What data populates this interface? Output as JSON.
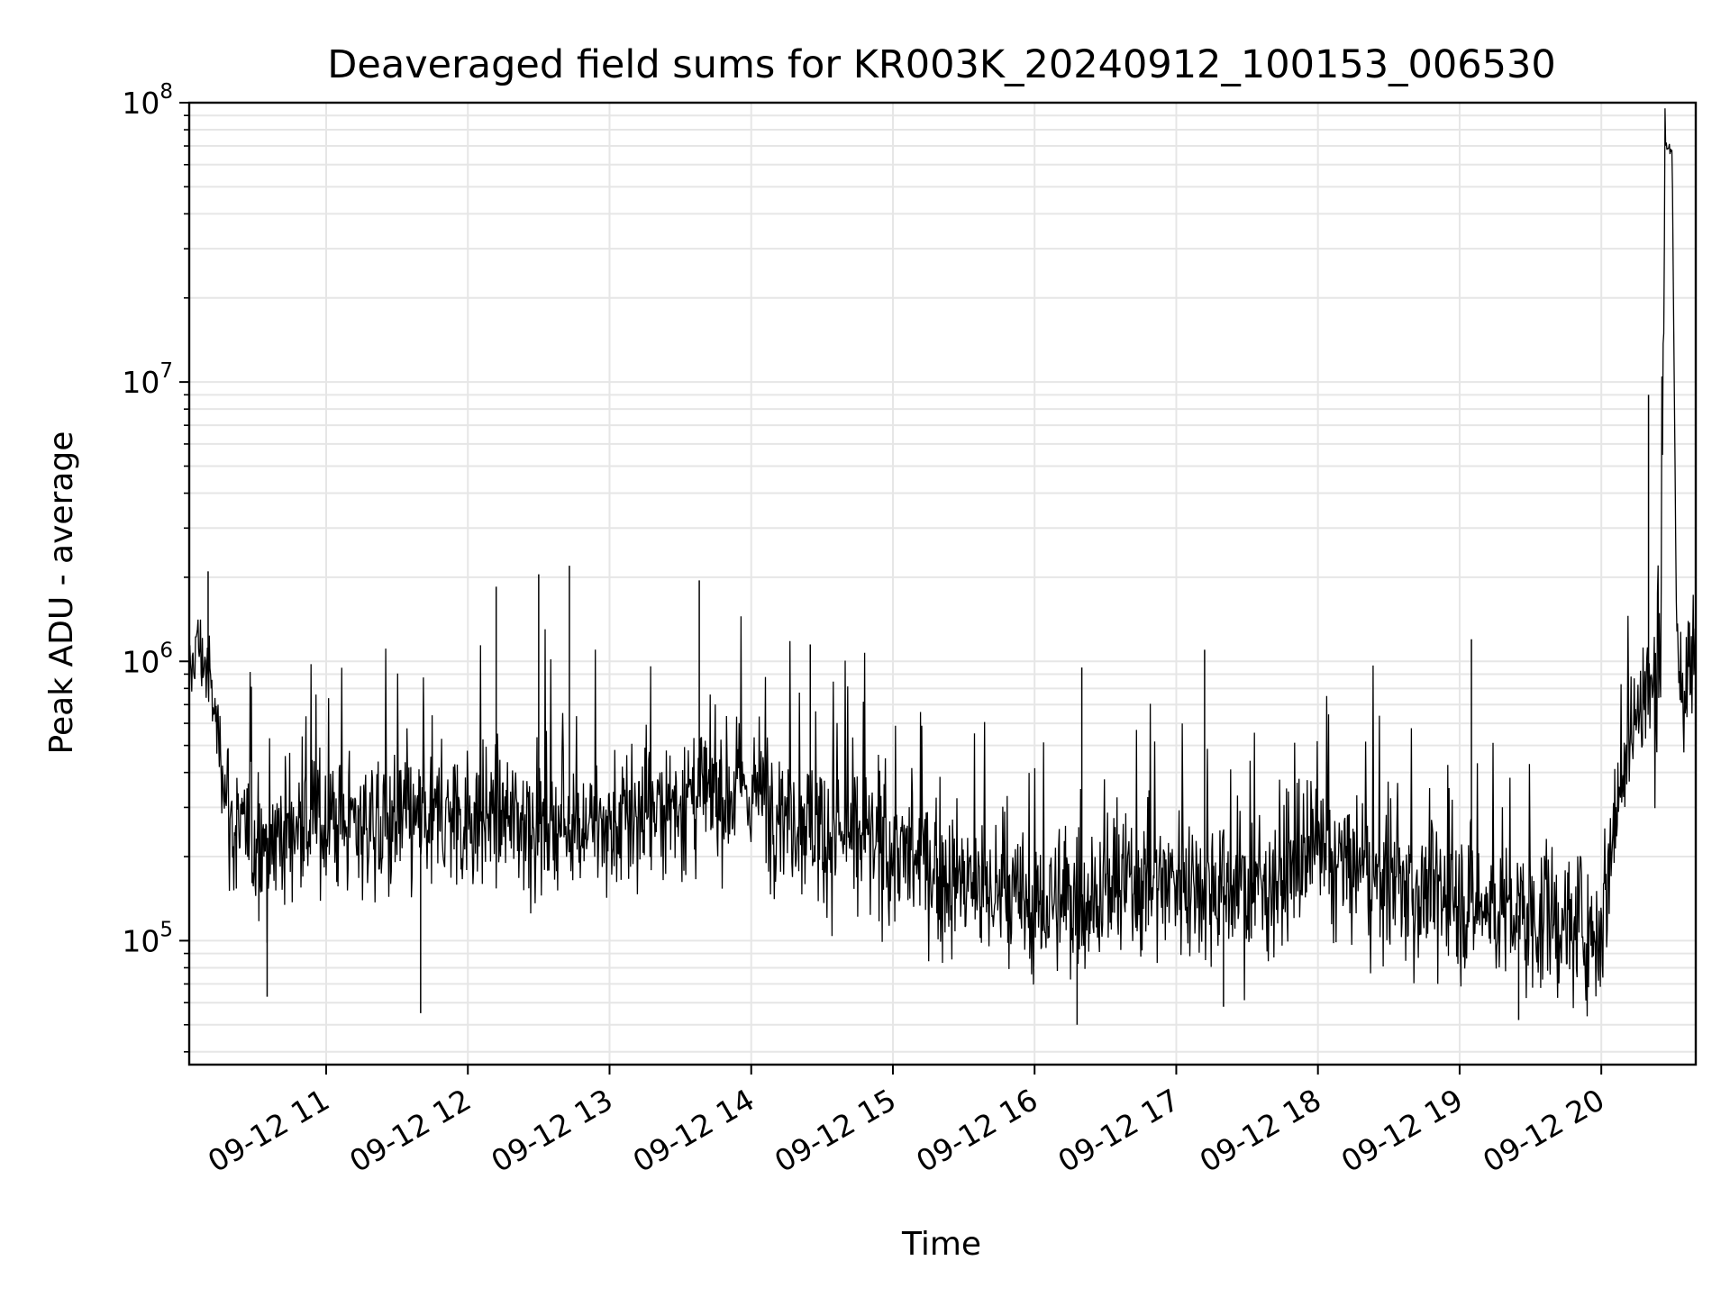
{
  "chart_data": {
    "type": "line",
    "title": "Deaveraged field sums for KR003K_20240912_100153_006530",
    "xlabel": "Time",
    "ylabel": "Peak ADU - average",
    "x_range": [
      "2024-09-12 10:02",
      "2024-09-12 20:40"
    ],
    "x_ticks": [
      {
        "time": "2024-09-12 11:00",
        "label": "09-12 11"
      },
      {
        "time": "2024-09-12 12:00",
        "label": "09-12 12"
      },
      {
        "time": "2024-09-12 13:00",
        "label": "09-12 13"
      },
      {
        "time": "2024-09-12 14:00",
        "label": "09-12 14"
      },
      {
        "time": "2024-09-12 15:00",
        "label": "09-12 15"
      },
      {
        "time": "2024-09-12 16:00",
        "label": "09-12 16"
      },
      {
        "time": "2024-09-12 17:00",
        "label": "09-12 17"
      },
      {
        "time": "2024-09-12 18:00",
        "label": "09-12 18"
      },
      {
        "time": "2024-09-12 19:00",
        "label": "09-12 19"
      },
      {
        "time": "2024-09-12 20:00",
        "label": "09-12 20"
      }
    ],
    "y_scale": "log",
    "ylim": [
      36000,
      100000000
    ],
    "y_ticks": [
      {
        "value": 100000,
        "base": "10",
        "exp": "5"
      },
      {
        "value": 1000000,
        "base": "10",
        "exp": "6"
      },
      {
        "value": 10000000,
        "base": "10",
        "exp": "7"
      },
      {
        "value": 100000000,
        "base": "10",
        "exp": "8"
      }
    ],
    "grid": true,
    "line_color": "#000000",
    "grid_color": "#e6e6e6",
    "series": [
      {
        "x": [
          "2024-09-12 10:02",
          "2024-09-12 10:05",
          "2024-09-12 10:10",
          "2024-09-12 10:15",
          "2024-09-12 10:20",
          "2024-09-12 10:30",
          "2024-09-12 10:45",
          "2024-09-12 11:00",
          "2024-09-12 11:30",
          "2024-09-12 12:00",
          "2024-09-12 12:30",
          "2024-09-12 13:00",
          "2024-09-12 13:30",
          "2024-09-12 14:00",
          "2024-09-12 14:30",
          "2024-09-12 15:00",
          "2024-09-12 15:30",
          "2024-09-12 16:00",
          "2024-09-12 16:30",
          "2024-09-12 17:00",
          "2024-09-12 17:30",
          "2024-09-12 18:00",
          "2024-09-12 18:30",
          "2024-09-12 19:00",
          "2024-09-12 19:30",
          "2024-09-12 20:00",
          "2024-09-12 20:05",
          "2024-09-12 20:10",
          "2024-09-12 20:15",
          "2024-09-12 20:20",
          "2024-09-12 20:25",
          "2024-09-12 20:27",
          "2024-09-12 20:30",
          "2024-09-12 20:32",
          "2024-09-12 20:34",
          "2024-09-12 20:40"
        ],
        "y": [
          800000,
          1200000,
          900000,
          500000,
          250000,
          220000,
          250000,
          270000,
          260000,
          280000,
          270000,
          250000,
          320000,
          350000,
          250000,
          210000,
          160000,
          130000,
          150000,
          170000,
          150000,
          200000,
          160000,
          140000,
          120000,
          110000,
          250000,
          500000,
          650000,
          800000,
          750000,
          72000000,
          65000000,
          1000000,
          800000,
          1000000
        ]
      }
    ],
    "peaks": [
      {
        "x": "2024-09-12 10:10",
        "y": 2100000
      },
      {
        "x": "2024-09-12 12:12",
        "y": 1850000
      },
      {
        "x": "2024-09-12 12:30",
        "y": 2050000
      },
      {
        "x": "2024-09-12 12:43",
        "y": 2200000
      },
      {
        "x": "2024-09-12 13:38",
        "y": 1950000
      },
      {
        "x": "2024-09-12 14:25",
        "y": 1150000
      },
      {
        "x": "2024-09-12 16:20",
        "y": 950000
      },
      {
        "x": "2024-09-12 17:12",
        "y": 1100000
      },
      {
        "x": "2024-09-12 19:05",
        "y": 1200000
      },
      {
        "x": "2024-09-12 20:20",
        "y": 9000000
      }
    ],
    "troughs": [
      {
        "x": "2024-09-12 10:35",
        "y": 63000
      },
      {
        "x": "2024-09-12 11:40",
        "y": 55000
      },
      {
        "x": "2024-09-12 16:18",
        "y": 50000
      },
      {
        "x": "2024-09-12 17:20",
        "y": 58000
      },
      {
        "x": "2024-09-12 19:25",
        "y": 52000
      }
    ]
  }
}
